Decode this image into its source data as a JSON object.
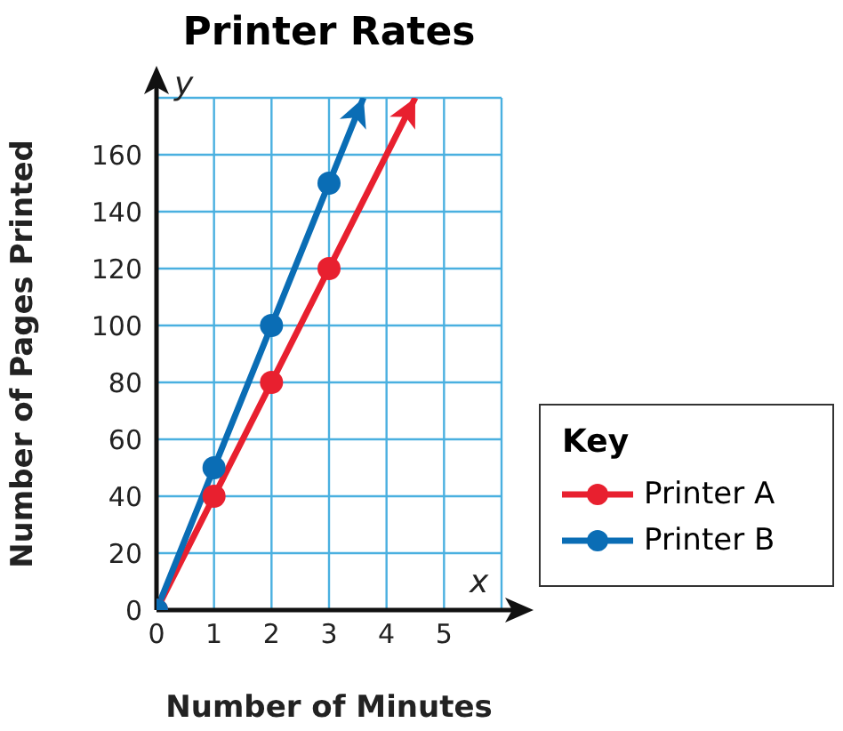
{
  "chart_data": {
    "type": "line",
    "title": "Printer Rates",
    "xlabel": "Number of Minutes",
    "ylabel": "Number of Pages Printed",
    "legend_title": "Key",
    "annotations": [
      "y",
      "x"
    ],
    "xlim": [
      0,
      6
    ],
    "xticks": [
      0,
      1,
      2,
      3,
      4,
      5,
      {
        "value": 6,
        "label": null
      }
    ],
    "ylim": [
      0,
      180
    ],
    "yticks": [
      0,
      20,
      40,
      60,
      80,
      100,
      120,
      140,
      160,
      {
        "value": 180,
        "label": null
      }
    ],
    "grid": true,
    "legend": "right",
    "marker": "circle",
    "line_style": "solid",
    "series": [
      {
        "name": "Printer A",
        "color": "#e8202f",
        "x": [
          0,
          1,
          2,
          3,
          4.5
        ],
        "values": [
          0,
          40,
          80,
          120,
          180
        ]
      },
      {
        "name": "Printer B",
        "color": "#0a6db5",
        "x": [
          0,
          1,
          2,
          3,
          3.6
        ],
        "values": [
          0,
          50,
          100,
          150,
          180
        ]
      }
    ]
  }
}
